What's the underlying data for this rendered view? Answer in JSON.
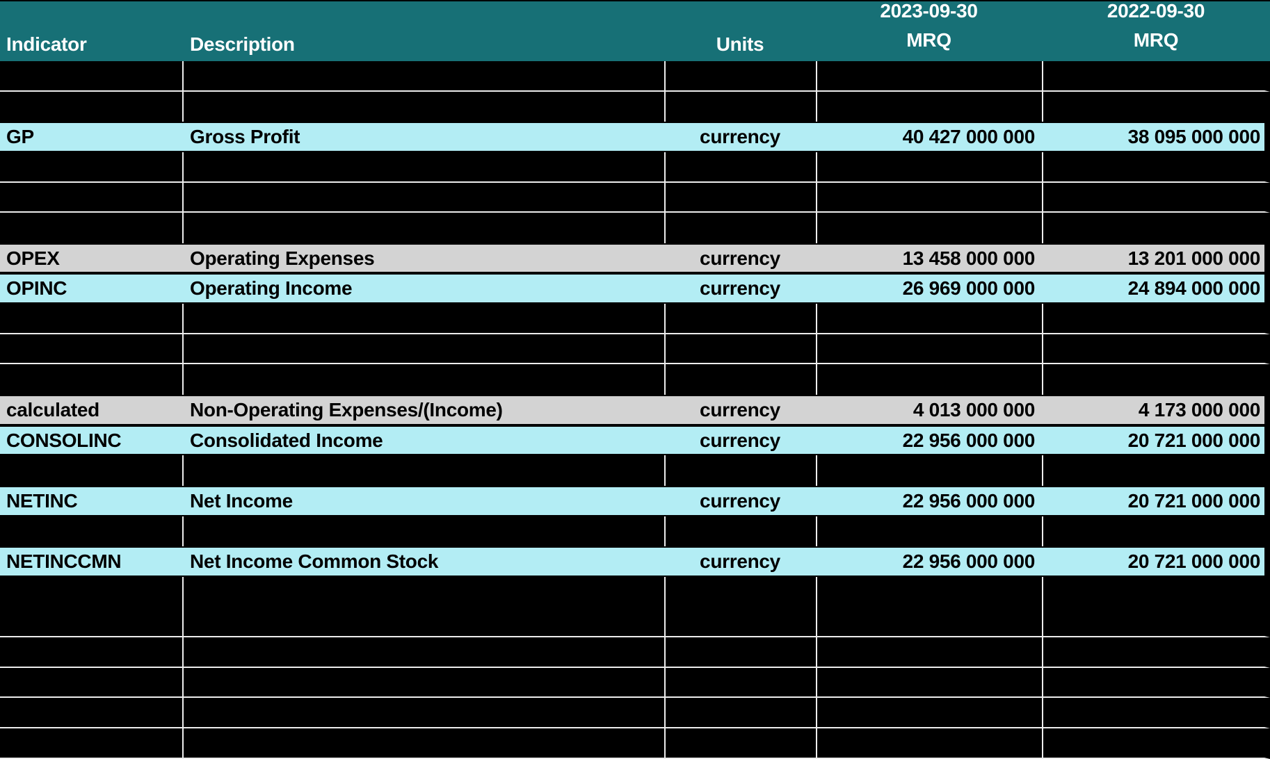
{
  "colors": {
    "header_bg": "#177076",
    "highlight_row_bg": "#B3EDF4",
    "subtotal_row_bg": "#D3D3D3",
    "gridline": "#EDEDED",
    "header_text": "#FFFFFF",
    "row_text": "#000000"
  },
  "header": {
    "indicator": "Indicator",
    "description": "Description",
    "units": "Units",
    "col_2023": {
      "date": "2023-09-30",
      "period": "MRQ"
    },
    "col_2022": {
      "date": "2022-09-30",
      "period": "MRQ"
    }
  },
  "rows": [
    {
      "type": "empty",
      "divider": true
    },
    {
      "type": "empty",
      "divider": false
    },
    {
      "type": "data",
      "style": "cyan",
      "indicator": "GP",
      "description": "Gross Profit",
      "units": "currency",
      "mrq_2023": "40 427 000 000",
      "mrq_2022": "38 095 000 000"
    },
    {
      "type": "empty",
      "divider": true
    },
    {
      "type": "empty",
      "divider": true
    },
    {
      "type": "empty",
      "divider": false
    },
    {
      "type": "data",
      "style": "gray",
      "indicator": "OPEX",
      "description": "Operating Expenses",
      "units": "currency",
      "mrq_2023": "13 458 000 000",
      "mrq_2022": "13 201 000 000"
    },
    {
      "type": "data",
      "style": "cyan",
      "indicator": "OPINC",
      "description": "Operating Income",
      "units": "currency",
      "mrq_2023": "26 969 000 000",
      "mrq_2022": "24 894 000 000"
    },
    {
      "type": "empty",
      "divider": true
    },
    {
      "type": "empty",
      "divider": true
    },
    {
      "type": "empty",
      "divider": false
    },
    {
      "type": "data",
      "style": "gray",
      "indicator": "calculated",
      "description": "Non-Operating Expenses/(Income)",
      "units": "currency",
      "mrq_2023": "4 013 000 000",
      "mrq_2022": "4 173 000 000"
    },
    {
      "type": "data",
      "style": "cyan",
      "indicator": "CONSOLINC",
      "description": "Consolidated Income",
      "units": "currency",
      "mrq_2023": "22 956 000 000",
      "mrq_2022": "20 721 000 000"
    },
    {
      "type": "empty",
      "divider": false
    },
    {
      "type": "data",
      "style": "cyan",
      "indicator": "NETINC",
      "description": "Net Income",
      "units": "currency",
      "mrq_2023": "22 956 000 000",
      "mrq_2022": "20 721 000 000"
    },
    {
      "type": "empty",
      "divider": false
    },
    {
      "type": "data",
      "style": "cyan",
      "indicator": "NETINCCMN",
      "description": "Net Income Common Stock",
      "units": "currency",
      "mrq_2023": "22 956 000 000",
      "mrq_2022": "20 721 000 000"
    },
    {
      "type": "empty",
      "divider": false
    },
    {
      "type": "empty",
      "divider": true
    },
    {
      "type": "empty",
      "divider": true
    },
    {
      "type": "empty",
      "divider": true
    },
    {
      "type": "empty",
      "divider": true
    },
    {
      "type": "empty",
      "divider": true
    }
  ]
}
